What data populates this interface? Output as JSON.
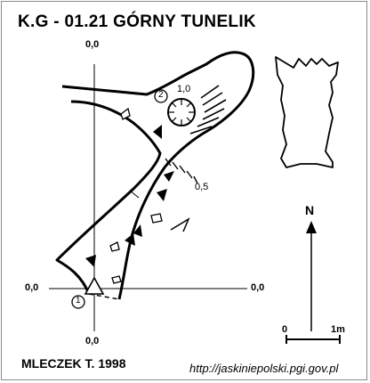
{
  "header": {
    "title": "K.G - 01.21  GÓRNY TUNELIK"
  },
  "grid": {
    "top_label": "0,0",
    "bottom_label": "0,0",
    "left_label": "0,0",
    "right_label": "0,0"
  },
  "stations": [
    {
      "number": "1"
    },
    {
      "number": "2"
    }
  ],
  "depths": [
    {
      "label": "1,0"
    },
    {
      "label": "0,5"
    }
  ],
  "north": {
    "label": "N"
  },
  "scale_bar": {
    "start_label": "0",
    "end_label": "1m"
  },
  "footer": {
    "author": "MLECZEK T. 1998",
    "url": "http://jaskiniepolski.pgi.gov.pl"
  },
  "colors": {
    "ink": "#000000",
    "paper": "#ffffff",
    "frame": "#8a8a8a"
  }
}
